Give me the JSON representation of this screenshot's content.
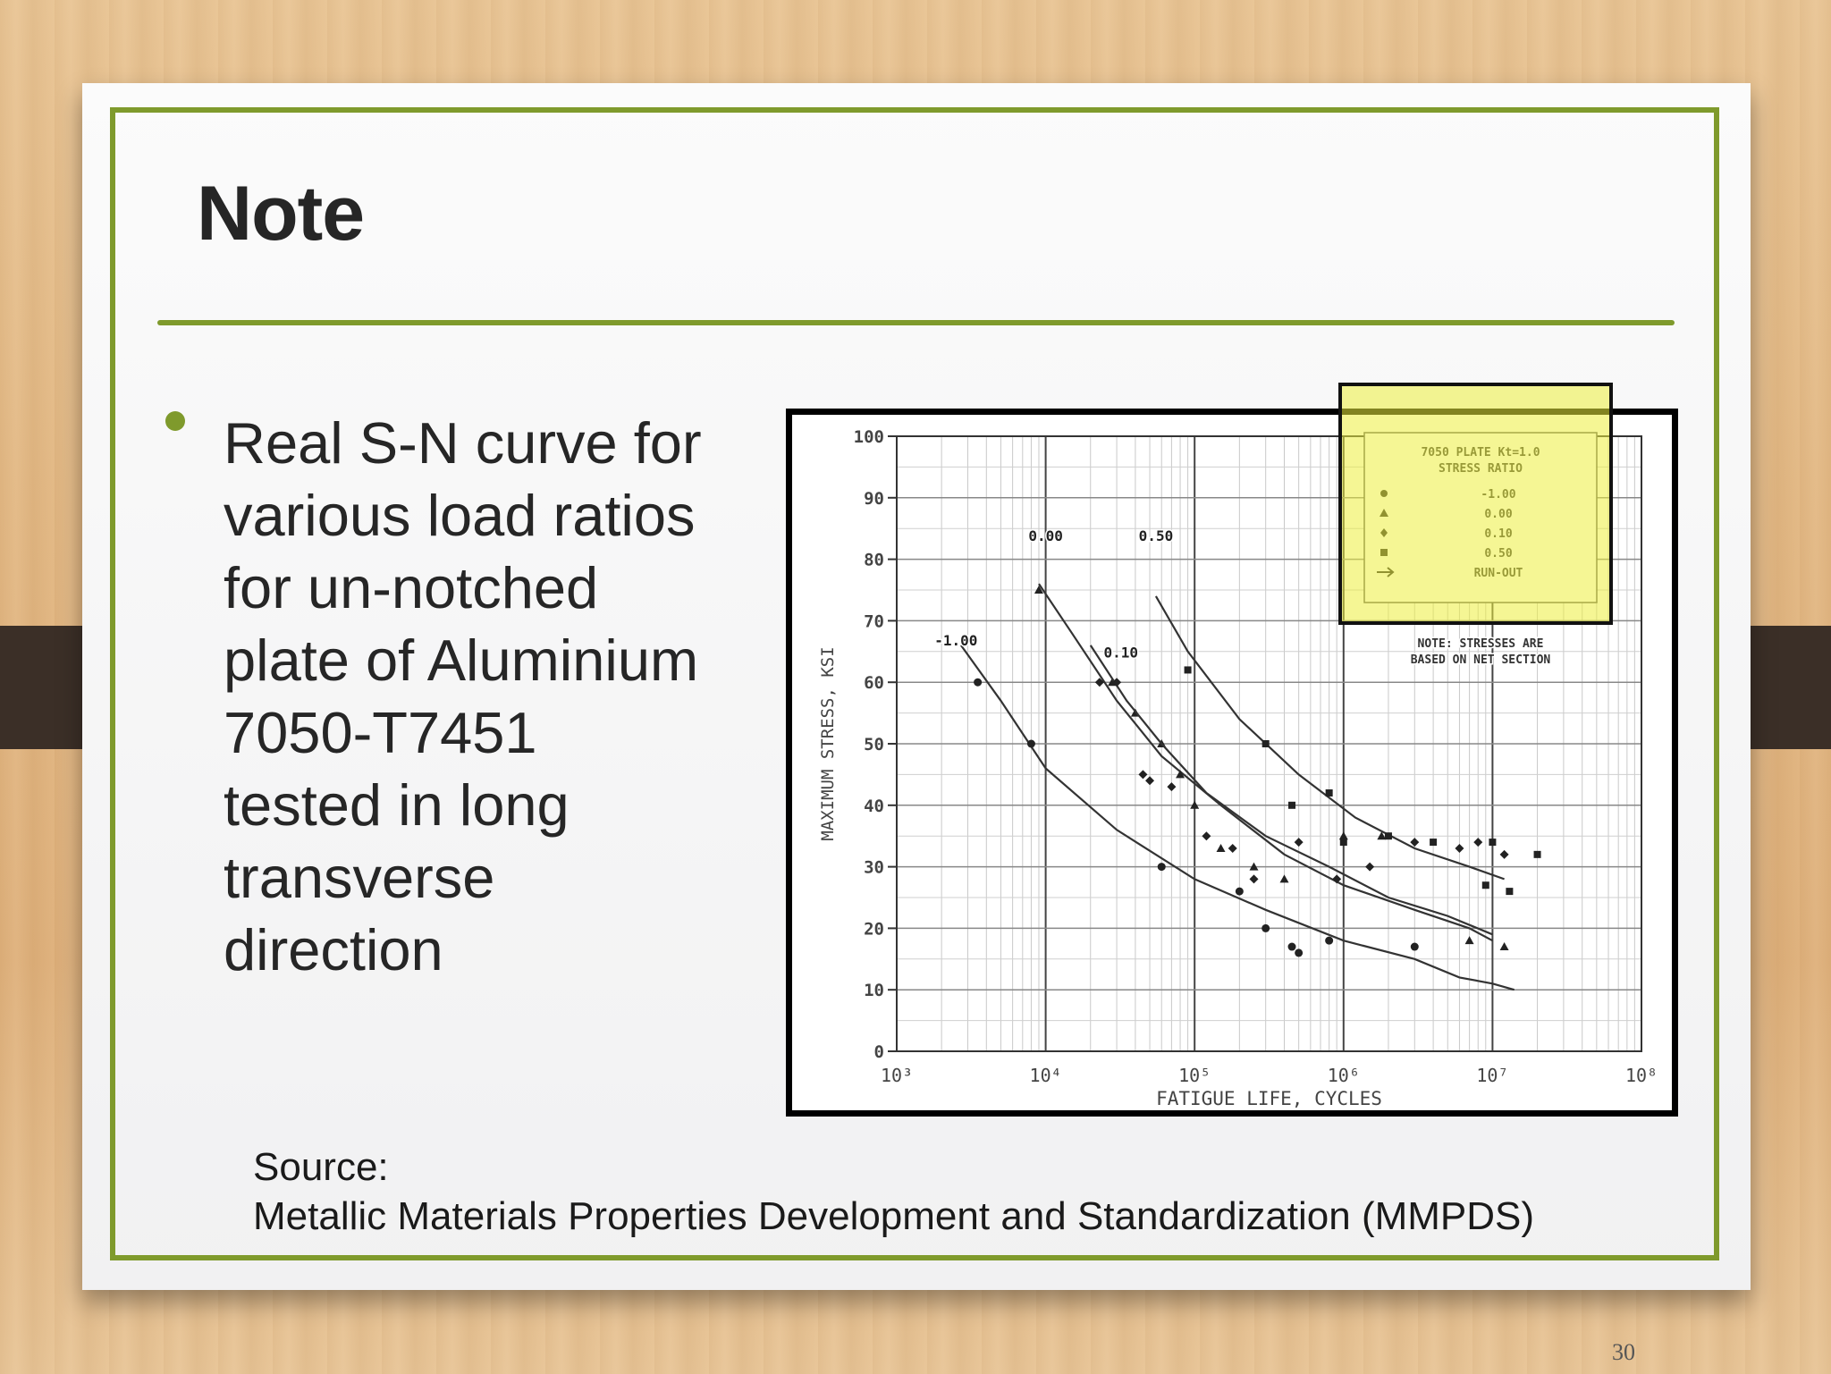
{
  "slide": {
    "title": "Note",
    "bullet_lines": [
      "Real S-N curve for",
      "various load ratios",
      "for un-notched",
      "plate of Aluminium",
      "7050-T7451",
      "tested in long",
      "transverse",
      "direction"
    ],
    "source_label": "Source:",
    "source_text": "Metallic Materials Properties Development and Standardization (MMPDS)",
    "page_number": "30"
  },
  "colors": {
    "accent": "#7f9a2c",
    "highlight": "#ecee3c",
    "tab": "#3b2f27",
    "text": "#262626"
  },
  "chart_data": {
    "type": "scatter",
    "xlabel": "FATIGUE LIFE, CYCLES",
    "ylabel": "MAXIMUM STRESS, KSI",
    "x_scale": "log",
    "xlim": [
      1000,
      100000000
    ],
    "ylim": [
      0,
      100
    ],
    "x_ticks": [
      1000,
      10000,
      100000,
      1000000,
      10000000,
      100000000
    ],
    "x_tick_labels": [
      "10³",
      "10⁴",
      "10⁵",
      "10⁶",
      "10⁷",
      "10⁸"
    ],
    "y_ticks": [
      0,
      10,
      20,
      30,
      40,
      50,
      60,
      70,
      80,
      90,
      100
    ],
    "y_tick_labels": [
      "0",
      "10",
      "20",
      "30",
      "40",
      "50",
      "60",
      "70",
      "80",
      "90",
      "100"
    ],
    "grid": true,
    "legend_position": "top-right",
    "legend_title": "7050 PLATE  Kt=1.0",
    "legend_subtitle": "STRESS RATIO",
    "legend_entries": [
      {
        "marker": "circle",
        "label": "-1.00"
      },
      {
        "marker": "triangle",
        "label": "0.00"
      },
      {
        "marker": "diamond",
        "label": "0.10"
      },
      {
        "marker": "square",
        "label": "0.50"
      },
      {
        "marker": "arrow",
        "label": "RUN-OUT"
      }
    ],
    "note": "NOTE: STRESSES ARE BASED ON NET SECTION",
    "series": [
      {
        "name": "-1.00",
        "label": "-1.00",
        "label_at": [
          2500,
          66
        ],
        "curve": [
          [
            2700,
            66
          ],
          [
            5000,
            57
          ],
          [
            10000,
            46
          ],
          [
            30000,
            36
          ],
          [
            100000,
            28
          ],
          [
            300000,
            23
          ],
          [
            1000000,
            18
          ],
          [
            3000000,
            15
          ],
          [
            6000000,
            12
          ],
          [
            10000000,
            11
          ],
          [
            14000000,
            10
          ]
        ],
        "points": [
          [
            3500,
            60
          ],
          [
            8000,
            50
          ],
          [
            60000,
            30
          ],
          [
            200000,
            26
          ],
          [
            300000,
            20
          ],
          [
            450000,
            17
          ],
          [
            500000,
            16
          ],
          [
            800000,
            18
          ],
          [
            3000000,
            17
          ]
        ]
      },
      {
        "name": "0.00",
        "label": "0.00",
        "label_at": [
          10000,
          83
        ],
        "curve": [
          [
            9000,
            76
          ],
          [
            15000,
            68
          ],
          [
            30000,
            57
          ],
          [
            60000,
            48
          ],
          [
            150000,
            40
          ],
          [
            400000,
            32
          ],
          [
            1000000,
            27
          ],
          [
            3000000,
            23
          ],
          [
            7000000,
            20
          ],
          [
            10000000,
            18
          ]
        ],
        "points": [
          [
            9000,
            75
          ],
          [
            28000,
            60
          ],
          [
            40000,
            55
          ],
          [
            60000,
            50
          ],
          [
            80000,
            45
          ],
          [
            100000,
            40
          ],
          [
            150000,
            33
          ],
          [
            250000,
            30
          ],
          [
            400000,
            28
          ],
          [
            1000000,
            35
          ],
          [
            1800000,
            35
          ],
          [
            7000000,
            18
          ],
          [
            12000000,
            17
          ]
        ]
      },
      {
        "name": "0.10",
        "label": "0.10",
        "label_at": [
          32000,
          64
        ],
        "curve": [
          [
            20000,
            66
          ],
          [
            35000,
            57
          ],
          [
            60000,
            50
          ],
          [
            120000,
            42
          ],
          [
            300000,
            35
          ],
          [
            800000,
            30
          ],
          [
            2000000,
            25
          ],
          [
            5000000,
            22
          ],
          [
            10000000,
            19
          ]
        ],
        "points": [
          [
            23000,
            60
          ],
          [
            30000,
            60
          ],
          [
            45000,
            45
          ],
          [
            50000,
            44
          ],
          [
            70000,
            43
          ],
          [
            120000,
            35
          ],
          [
            180000,
            33
          ],
          [
            250000,
            28
          ],
          [
            500000,
            34
          ],
          [
            900000,
            28
          ],
          [
            1500000,
            30
          ],
          [
            3000000,
            34
          ],
          [
            6000000,
            33
          ],
          [
            8000000,
            34
          ],
          [
            12000000,
            32
          ]
        ]
      },
      {
        "name": "0.50",
        "label": "0.50",
        "label_at": [
          55000,
          83
        ],
        "curve": [
          [
            55000,
            74
          ],
          [
            90000,
            65
          ],
          [
            200000,
            54
          ],
          [
            500000,
            45
          ],
          [
            1200000,
            38
          ],
          [
            3000000,
            33
          ],
          [
            7000000,
            30
          ],
          [
            12000000,
            28
          ]
        ],
        "points": [
          [
            90000,
            62
          ],
          [
            300000,
            50
          ],
          [
            450000,
            40
          ],
          [
            800000,
            42
          ],
          [
            1000000,
            34
          ],
          [
            2000000,
            35
          ],
          [
            4000000,
            34
          ],
          [
            9000000,
            27
          ],
          [
            10000000,
            34
          ],
          [
            13000000,
            26
          ],
          [
            20000000,
            32
          ]
        ]
      }
    ]
  }
}
